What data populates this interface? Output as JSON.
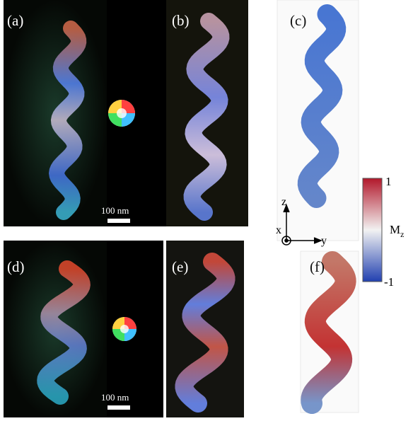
{
  "panels": [
    {
      "label": "(a)"
    },
    {
      "label": "(b)"
    },
    {
      "label": "(c)"
    },
    {
      "label": "(d)"
    },
    {
      "label": "(e)"
    },
    {
      "label": "(f)"
    }
  ],
  "scale_bars": [
    {
      "text": "100 nm"
    },
    {
      "text": "100 nm"
    }
  ],
  "colorbar": {
    "max": 1,
    "min": -1,
    "symbol": "M",
    "subscript": "z"
  },
  "axes": {
    "z": "z",
    "x": "x",
    "y": "y"
  }
}
